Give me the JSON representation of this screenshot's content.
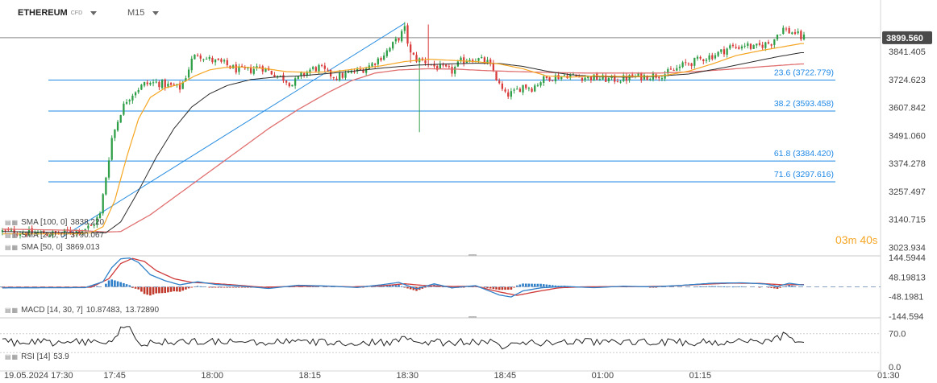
{
  "header": {
    "symbol": "ETHEREUM",
    "symbol_badge": "CFD",
    "timeframe": "M15"
  },
  "countdown": {
    "minutes": "03",
    "minutes_unit": "m",
    "seconds": "40",
    "seconds_unit": "s"
  },
  "legends": {
    "sma100": {
      "label": "SMA [100, 0]",
      "value": "3838.220"
    },
    "sma200": {
      "label": "SMA [200, 0]",
      "value": "3790.067"
    },
    "sma50": {
      "label": "SMA [50, 0]",
      "value": "3869.013"
    },
    "macd": {
      "label": "MACD [14, 30, 7]",
      "value1": "10.87483",
      "value2": "13.72890"
    },
    "rsi": {
      "label": "RSI [14]",
      "value": "53.9"
    }
  },
  "colors": {
    "up": "#2e9e47",
    "down": "#d93a3a",
    "sma50": "#f5a623",
    "sma100": "#2b2b2b",
    "sma200": "#e07070",
    "fib": "#1e88e5",
    "price_tag": "#4a4a4a",
    "macd_line": "#2f80c8",
    "signal_line": "#d03a3a",
    "rsi_line": "#222222"
  },
  "chart_data": [
    {
      "type": "candlestick",
      "title": "ETHEREUM CFD, M15",
      "x_ticks": [
        "19.05.2024 17:30",
        "17:45",
        "18:00",
        "18:15",
        "18:30",
        "18:45",
        "01:00",
        "01:15",
        "01:30"
      ],
      "y_ticks": [
        "3841.405",
        "3724.623",
        "3607.842",
        "3491.060",
        "3374.278",
        "3257.497",
        "3140.715",
        "3023.934"
      ],
      "ylim": [
        2995,
        3990
      ],
      "last_price": "3899.560",
      "fibonacci": [
        {
          "label": "23.6 (3722.779)",
          "level": 3722.779
        },
        {
          "label": "38.2 (3593.458)",
          "level": 3593.458
        },
        {
          "label": "61.8 (3384.420)",
          "level": 3384.42
        },
        {
          "label": "71.6 (3297.616)",
          "level": 3297.616
        }
      ],
      "fib_anchor_low": 3065,
      "fib_anchor_high": 3960,
      "close_path": [
        [
          0,
          3090
        ],
        [
          9,
          3085
        ],
        [
          18,
          3080
        ],
        [
          25,
          3095
        ],
        [
          30,
          3110
        ],
        [
          33,
          3160
        ],
        [
          35,
          3320
        ],
        [
          37,
          3480
        ],
        [
          40,
          3590
        ],
        [
          42,
          3640
        ],
        [
          45,
          3680
        ],
        [
          48,
          3705
        ],
        [
          52,
          3712
        ],
        [
          56,
          3700
        ],
        [
          60,
          3690
        ],
        [
          62,
          3740
        ],
        [
          64,
          3805
        ],
        [
          66,
          3835
        ],
        [
          69,
          3812
        ],
        [
          72,
          3800
        ],
        [
          75,
          3790
        ],
        [
          78,
          3772
        ],
        [
          81,
          3760
        ],
        [
          84,
          3765
        ],
        [
          87,
          3782
        ],
        [
          90,
          3760
        ],
        [
          95,
          3730
        ],
        [
          98,
          3705
        ],
        [
          101,
          3740
        ],
        [
          104,
          3765
        ],
        [
          107,
          3775
        ],
        [
          110,
          3750
        ],
        [
          113,
          3735
        ],
        [
          116,
          3745
        ],
        [
          119,
          3758
        ],
        [
          121,
          3765
        ],
        [
          123,
          3775
        ],
        [
          125,
          3790
        ],
        [
          128,
          3820
        ],
        [
          131,
          3855
        ],
        [
          134,
          3900
        ],
        [
          136,
          3935
        ],
        [
          138,
          3830
        ],
        [
          140,
          3810
        ],
        [
          143,
          3800
        ],
        [
          146,
          3780
        ],
        [
          149,
          3770
        ],
        [
          152,
          3760
        ],
        [
          155,
          3800
        ],
        [
          158,
          3815
        ],
        [
          161,
          3808
        ],
        [
          164,
          3795
        ],
        [
          166,
          3760
        ],
        [
          168,
          3700
        ],
        [
          170,
          3660
        ],
        [
          173,
          3670
        ],
        [
          176,
          3700
        ],
        [
          179,
          3690
        ],
        [
          182,
          3720
        ],
        [
          185,
          3735
        ],
        [
          188,
          3738
        ],
        [
          191,
          3746
        ],
        [
          194,
          3738
        ],
        [
          197,
          3735
        ],
        [
          200,
          3732
        ],
        [
          203,
          3728
        ],
        [
          206,
          3725
        ],
        [
          210,
          3728
        ],
        [
          213,
          3735
        ],
        [
          216,
          3738
        ],
        [
          219,
          3740
        ],
        [
          222,
          3745
        ],
        [
          225,
          3752
        ],
        [
          228,
          3770
        ],
        [
          231,
          3790
        ],
        [
          234,
          3800
        ],
        [
          237,
          3815
        ],
        [
          240,
          3825
        ],
        [
          243,
          3840
        ],
        [
          246,
          3862
        ],
        [
          248,
          3858
        ],
        [
          251,
          3872
        ],
        [
          254,
          3855
        ],
        [
          257,
          3870
        ],
        [
          260,
          3880
        ],
        [
          262,
          3915
        ],
        [
          264,
          3938
        ],
        [
          266,
          3925
        ],
        [
          268,
          3920
        ],
        [
          270,
          3900
        ]
      ],
      "spikes": [
        [
          136,
          3965
        ],
        [
          138,
          3795
        ],
        [
          141,
          3505
        ],
        [
          144,
          3955
        ]
      ],
      "sma50_path": [
        [
          0,
          3080
        ],
        [
          25,
          3080
        ],
        [
          30,
          3085
        ],
        [
          34,
          3110
        ],
        [
          38,
          3220
        ],
        [
          42,
          3400
        ],
        [
          46,
          3560
        ],
        [
          50,
          3650
        ],
        [
          55,
          3690
        ],
        [
          60,
          3705
        ],
        [
          65,
          3740
        ],
        [
          70,
          3765
        ],
        [
          75,
          3775
        ],
        [
          80,
          3778
        ],
        [
          88,
          3772
        ],
        [
          96,
          3758
        ],
        [
          104,
          3755
        ],
        [
          112,
          3758
        ],
        [
          120,
          3770
        ],
        [
          128,
          3782
        ],
        [
          136,
          3800
        ],
        [
          144,
          3810
        ],
        [
          152,
          3805
        ],
        [
          160,
          3800
        ],
        [
          168,
          3790
        ],
        [
          176,
          3770
        ],
        [
          184,
          3740
        ],
        [
          192,
          3735
        ],
        [
          200,
          3740
        ],
        [
          208,
          3738
        ],
        [
          216,
          3738
        ],
        [
          224,
          3742
        ],
        [
          232,
          3760
        ],
        [
          240,
          3790
        ],
        [
          248,
          3825
        ],
        [
          256,
          3845
        ],
        [
          264,
          3862
        ],
        [
          270,
          3875
        ]
      ],
      "sma100_path": [
        [
          0,
          3090
        ],
        [
          25,
          3085
        ],
        [
          35,
          3085
        ],
        [
          40,
          3130
        ],
        [
          46,
          3260
        ],
        [
          52,
          3400
        ],
        [
          58,
          3520
        ],
        [
          64,
          3610
        ],
        [
          70,
          3665
        ],
        [
          76,
          3700
        ],
        [
          84,
          3725
        ],
        [
          92,
          3735
        ],
        [
          100,
          3740
        ],
        [
          110,
          3750
        ],
        [
          120,
          3762
        ],
        [
          130,
          3775
        ],
        [
          140,
          3785
        ],
        [
          150,
          3790
        ],
        [
          160,
          3793
        ],
        [
          168,
          3792
        ],
        [
          176,
          3780
        ],
        [
          184,
          3760
        ],
        [
          192,
          3745
        ],
        [
          200,
          3738
        ],
        [
          210,
          3735
        ],
        [
          220,
          3738
        ],
        [
          232,
          3748
        ],
        [
          244,
          3775
        ],
        [
          254,
          3800
        ],
        [
          262,
          3820
        ],
        [
          270,
          3837
        ]
      ],
      "sma200_path": [
        [
          0,
          3100
        ],
        [
          25,
          3095
        ],
        [
          35,
          3088
        ],
        [
          40,
          3090
        ],
        [
          50,
          3160
        ],
        [
          60,
          3250
        ],
        [
          70,
          3340
        ],
        [
          80,
          3430
        ],
        [
          90,
          3520
        ],
        [
          100,
          3600
        ],
        [
          110,
          3670
        ],
        [
          118,
          3720
        ],
        [
          126,
          3752
        ],
        [
          134,
          3765
        ],
        [
          144,
          3770
        ],
        [
          154,
          3768
        ],
        [
          164,
          3762
        ],
        [
          174,
          3758
        ],
        [
          186,
          3754
        ],
        [
          198,
          3752
        ],
        [
          210,
          3752
        ],
        [
          222,
          3752
        ],
        [
          234,
          3758
        ],
        [
          246,
          3768
        ],
        [
          256,
          3778
        ],
        [
          264,
          3785
        ],
        [
          270,
          3790
        ]
      ]
    },
    {
      "type": "line",
      "title": "MACD [14, 30, 7]",
      "y_ticks": [
        "144.5944",
        "48.19813",
        "-48.1981",
        "-144.594"
      ],
      "ylim": [
        -144.594,
        144.5944
      ],
      "series": [
        {
          "name": "MACD",
          "values": [
            [
              0,
              -5
            ],
            [
              28,
              -4
            ],
            [
              34,
              25
            ],
            [
              37,
              95
            ],
            [
              40,
              138
            ],
            [
              43,
              142
            ],
            [
              46,
              120
            ],
            [
              50,
              60
            ],
            [
              55,
              30
            ],
            [
              60,
              10
            ],
            [
              66,
              25
            ],
            [
              72,
              12
            ],
            [
              80,
              5
            ],
            [
              90,
              -8
            ],
            [
              100,
              8
            ],
            [
              110,
              4
            ],
            [
              120,
              -3
            ],
            [
              128,
              10
            ],
            [
              134,
              22
            ],
            [
              140,
              -10
            ],
            [
              146,
              15
            ],
            [
              152,
              -5
            ],
            [
              160,
              6
            ],
            [
              168,
              -40
            ],
            [
              172,
              -50
            ],
            [
              176,
              -20
            ],
            [
              182,
              -5
            ],
            [
              190,
              2
            ],
            [
              200,
              -4
            ],
            [
              210,
              3
            ],
            [
              220,
              0
            ],
            [
              230,
              8
            ],
            [
              240,
              18
            ],
            [
              250,
              20
            ],
            [
              258,
              14
            ],
            [
              262,
              2
            ],
            [
              266,
              18
            ],
            [
              270,
              10
            ]
          ]
        },
        {
          "name": "Signal",
          "values": [
            [
              0,
              -3
            ],
            [
              30,
              -2
            ],
            [
              36,
              40
            ],
            [
              40,
              115
            ],
            [
              44,
              140
            ],
            [
              48,
              125
            ],
            [
              52,
              80
            ],
            [
              58,
              40
            ],
            [
              64,
              22
            ],
            [
              70,
              18
            ],
            [
              78,
              10
            ],
            [
              88,
              -2
            ],
            [
              98,
              2
            ],
            [
              108,
              4
            ],
            [
              118,
              0
            ],
            [
              128,
              5
            ],
            [
              136,
              15
            ],
            [
              144,
              5
            ],
            [
              152,
              2
            ],
            [
              160,
              3
            ],
            [
              168,
              -25
            ],
            [
              174,
              -42
            ],
            [
              180,
              -25
            ],
            [
              188,
              -5
            ],
            [
              196,
              0
            ],
            [
              206,
              1
            ],
            [
              216,
              1
            ],
            [
              226,
              4
            ],
            [
              236,
              12
            ],
            [
              246,
              18
            ],
            [
              256,
              17
            ],
            [
              264,
              10
            ],
            [
              270,
              11
            ]
          ]
        }
      ]
    },
    {
      "type": "line",
      "title": "RSI [14]",
      "y_ticks": [
        "70.0",
        "0.0"
      ],
      "ylim": [
        0,
        100
      ],
      "series": [
        {
          "name": "RSI",
          "values_seed": 7,
          "base": 52,
          "peaks": [
            [
              40,
              72
            ],
            [
              43,
              80
            ],
            [
              136,
              68
            ],
            [
              170,
              35
            ],
            [
              264,
              66
            ]
          ]
        }
      ]
    }
  ]
}
